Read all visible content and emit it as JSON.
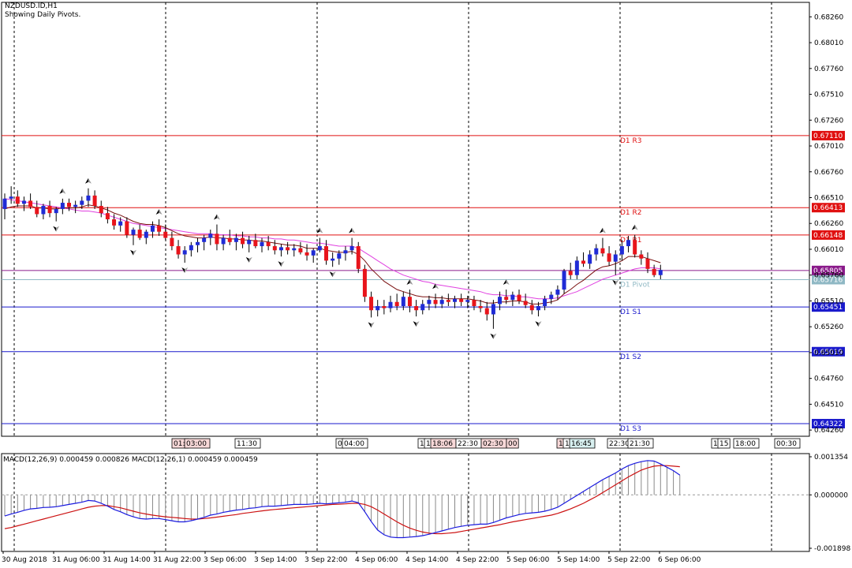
{
  "header": {
    "symbol_line": "NZDUSD.ID,H1",
    "pivots_line": "Showing Daily Pivots."
  },
  "colors": {
    "bull": "#1f2bd6",
    "bear": "#e8141b",
    "ma_fast": "#7a1010",
    "ma_slow": "#e040e0",
    "macd_line": "#1a1adf",
    "signal_line": "#cc1111",
    "resistance": "#e01010",
    "support": "#1a1acc",
    "pivot": "#8fb8c4",
    "current": "#8a1a8a"
  },
  "price_axis": {
    "ticks": [
      "0.68260",
      "0.68010",
      "0.67760",
      "0.67510",
      "0.67260",
      "0.67010",
      "0.66760",
      "0.66510",
      "0.66260",
      "0.66010",
      "0.65760",
      "0.65510",
      "0.65260",
      "0.65010",
      "0.64760",
      "0.64510",
      "0.64260"
    ],
    "min": 0.642,
    "max": 0.684
  },
  "pivot_levels": [
    {
      "name": "D1 R3",
      "label": "D1 R3",
      "value": 0.6711,
      "tag": "0.67110",
      "kind": "resistance"
    },
    {
      "name": "D1 R2",
      "label": "D1 R2",
      "value": 0.66413,
      "tag": "0.66413",
      "kind": "resistance"
    },
    {
      "name": "D1 R1",
      "label": "D1 R1",
      "value": 0.66148,
      "tag": "0.66148",
      "kind": "resistance"
    },
    {
      "name": "D1 Pivot",
      "label": "D1 Pivot",
      "value": 0.65716,
      "tag": "0.65716",
      "kind": "pivot"
    },
    {
      "name": "D1 S1",
      "label": "D1 S1",
      "value": 0.65451,
      "tag": "0.65451",
      "kind": "support"
    },
    {
      "name": "D1 S2",
      "label": "D1 S2",
      "value": 0.65019,
      "tag": "0.65019",
      "kind": "support"
    },
    {
      "name": "D1 S3",
      "label": "D1 S3",
      "value": 0.64322,
      "tag": "0.64322",
      "kind": "support"
    }
  ],
  "current_price": {
    "value": 0.65805,
    "tag": "0.65805"
  },
  "time_axis": {
    "labels": [
      "30 Aug 2018",
      "31 Aug 06:00",
      "31 Aug 14:00",
      "31 Aug 22:00",
      "3 Sep 06:00",
      "3 Sep 14:00",
      "3 Sep 22:00",
      "4 Sep 06:00",
      "4 Sep 14:00",
      "4 Sep 22:00",
      "5 Sep 06:00",
      "5 Sep 14:00",
      "5 Sep 22:00",
      "6 Sep 06:00"
    ]
  },
  "session_tags": [
    "01:",
    "03:00",
    "11:30",
    "0",
    "04:00",
    "1",
    "1",
    "18:06",
    "22:30",
    "02:30",
    "00",
    "1",
    "1",
    "16:45",
    "22:30",
    "21:30",
    "1",
    "15",
    "18:00",
    "00:30"
  ],
  "macd_panel": {
    "title": "MACD(12,26,9) 0.000459 0.000826 MACD(12,26,1) 0.000459 0.000459",
    "ticks": [
      "0.001354",
      "0.000000",
      "-0.001898"
    ],
    "min": -0.001898,
    "max": 0.001354
  },
  "chart_data": {
    "type": "candlestick",
    "symbol": "NZDUSD.ID",
    "timeframe": "H1",
    "candles": [
      {
        "o": 0.664,
        "h": 0.6655,
        "l": 0.663,
        "c": 0.665
      },
      {
        "o": 0.665,
        "h": 0.6662,
        "l": 0.6645,
        "c": 0.6652
      },
      {
        "o": 0.6652,
        "h": 0.6658,
        "l": 0.6642,
        "c": 0.6645
      },
      {
        "o": 0.6645,
        "h": 0.6652,
        "l": 0.6638,
        "c": 0.6648
      },
      {
        "o": 0.6648,
        "h": 0.6655,
        "l": 0.664,
        "c": 0.6642
      },
      {
        "o": 0.6642,
        "h": 0.6648,
        "l": 0.6632,
        "c": 0.6635
      },
      {
        "o": 0.6635,
        "h": 0.6645,
        "l": 0.663,
        "c": 0.6643
      },
      {
        "o": 0.6643,
        "h": 0.6648,
        "l": 0.6632,
        "c": 0.6636
      },
      {
        "o": 0.6636,
        "h": 0.6642,
        "l": 0.6628,
        "c": 0.664
      },
      {
        "o": 0.664,
        "h": 0.665,
        "l": 0.6635,
        "c": 0.6646
      },
      {
        "o": 0.6646,
        "h": 0.665,
        "l": 0.6638,
        "c": 0.6642
      },
      {
        "o": 0.6642,
        "h": 0.6648,
        "l": 0.6636,
        "c": 0.6644
      },
      {
        "o": 0.6644,
        "h": 0.6652,
        "l": 0.664,
        "c": 0.6648
      },
      {
        "o": 0.6648,
        "h": 0.666,
        "l": 0.6642,
        "c": 0.6653
      },
      {
        "o": 0.6653,
        "h": 0.6658,
        "l": 0.664,
        "c": 0.6643
      },
      {
        "o": 0.6643,
        "h": 0.6648,
        "l": 0.6632,
        "c": 0.6636
      },
      {
        "o": 0.6636,
        "h": 0.6642,
        "l": 0.6626,
        "c": 0.663
      },
      {
        "o": 0.663,
        "h": 0.6635,
        "l": 0.662,
        "c": 0.6624
      },
      {
        "o": 0.6624,
        "h": 0.6632,
        "l": 0.6618,
        "c": 0.6628
      },
      {
        "o": 0.6628,
        "h": 0.6632,
        "l": 0.6612,
        "c": 0.6615
      },
      {
        "o": 0.6615,
        "h": 0.6622,
        "l": 0.6605,
        "c": 0.662
      },
      {
        "o": 0.662,
        "h": 0.6625,
        "l": 0.661,
        "c": 0.6612
      },
      {
        "o": 0.6612,
        "h": 0.662,
        "l": 0.6606,
        "c": 0.6618
      },
      {
        "o": 0.6618,
        "h": 0.6628,
        "l": 0.6612,
        "c": 0.6624
      },
      {
        "o": 0.6624,
        "h": 0.663,
        "l": 0.6614,
        "c": 0.6618
      },
      {
        "o": 0.6618,
        "h": 0.6625,
        "l": 0.661,
        "c": 0.6612
      },
      {
        "o": 0.6612,
        "h": 0.6618,
        "l": 0.66,
        "c": 0.6604
      },
      {
        "o": 0.6604,
        "h": 0.661,
        "l": 0.6592,
        "c": 0.6596
      },
      {
        "o": 0.6596,
        "h": 0.6604,
        "l": 0.6588,
        "c": 0.66
      },
      {
        "o": 0.66,
        "h": 0.6608,
        "l": 0.6594,
        "c": 0.6605
      },
      {
        "o": 0.6605,
        "h": 0.6612,
        "l": 0.6598,
        "c": 0.6608
      },
      {
        "o": 0.6608,
        "h": 0.6615,
        "l": 0.66,
        "c": 0.6612
      },
      {
        "o": 0.6612,
        "h": 0.662,
        "l": 0.6605,
        "c": 0.6616
      },
      {
        "o": 0.6616,
        "h": 0.6625,
        "l": 0.66,
        "c": 0.6606
      },
      {
        "o": 0.6606,
        "h": 0.6615,
        "l": 0.66,
        "c": 0.6612
      },
      {
        "o": 0.6612,
        "h": 0.662,
        "l": 0.6605,
        "c": 0.6608
      },
      {
        "o": 0.6608,
        "h": 0.6616,
        "l": 0.66,
        "c": 0.6612
      },
      {
        "o": 0.6612,
        "h": 0.6618,
        "l": 0.6602,
        "c": 0.6606
      },
      {
        "o": 0.6606,
        "h": 0.6614,
        "l": 0.6598,
        "c": 0.661
      },
      {
        "o": 0.661,
        "h": 0.6616,
        "l": 0.6602,
        "c": 0.6604
      },
      {
        "o": 0.6604,
        "h": 0.6612,
        "l": 0.6598,
        "c": 0.6608
      },
      {
        "o": 0.6608,
        "h": 0.6614,
        "l": 0.66,
        "c": 0.6604
      },
      {
        "o": 0.6604,
        "h": 0.661,
        "l": 0.6596,
        "c": 0.66
      },
      {
        "o": 0.66,
        "h": 0.6606,
        "l": 0.6594,
        "c": 0.6603
      },
      {
        "o": 0.6603,
        "h": 0.6608,
        "l": 0.6596,
        "c": 0.66
      },
      {
        "o": 0.66,
        "h": 0.6606,
        "l": 0.6594,
        "c": 0.6602
      },
      {
        "o": 0.6602,
        "h": 0.6608,
        "l": 0.6596,
        "c": 0.6598
      },
      {
        "o": 0.6598,
        "h": 0.6606,
        "l": 0.659,
        "c": 0.6595
      },
      {
        "o": 0.6595,
        "h": 0.6602,
        "l": 0.6588,
        "c": 0.66
      },
      {
        "o": 0.66,
        "h": 0.6612,
        "l": 0.6598,
        "c": 0.6604
      },
      {
        "o": 0.6604,
        "h": 0.661,
        "l": 0.6586,
        "c": 0.659
      },
      {
        "o": 0.659,
        "h": 0.6598,
        "l": 0.6584,
        "c": 0.6592
      },
      {
        "o": 0.6592,
        "h": 0.66,
        "l": 0.6586,
        "c": 0.6597
      },
      {
        "o": 0.6597,
        "h": 0.6604,
        "l": 0.659,
        "c": 0.66
      },
      {
        "o": 0.66,
        "h": 0.6612,
        "l": 0.6596,
        "c": 0.6604
      },
      {
        "o": 0.6604,
        "h": 0.6608,
        "l": 0.6578,
        "c": 0.6582
      },
      {
        "o": 0.6582,
        "h": 0.6586,
        "l": 0.655,
        "c": 0.6555
      },
      {
        "o": 0.6555,
        "h": 0.656,
        "l": 0.6535,
        "c": 0.6542
      },
      {
        "o": 0.6542,
        "h": 0.6552,
        "l": 0.6536,
        "c": 0.6546
      },
      {
        "o": 0.6546,
        "h": 0.6552,
        "l": 0.6538,
        "c": 0.6544
      },
      {
        "o": 0.6544,
        "h": 0.6556,
        "l": 0.654,
        "c": 0.655
      },
      {
        "o": 0.655,
        "h": 0.6558,
        "l": 0.6542,
        "c": 0.6546
      },
      {
        "o": 0.6546,
        "h": 0.656,
        "l": 0.6542,
        "c": 0.6555
      },
      {
        "o": 0.6555,
        "h": 0.6562,
        "l": 0.654,
        "c": 0.6546
      },
      {
        "o": 0.6546,
        "h": 0.6552,
        "l": 0.6536,
        "c": 0.6542
      },
      {
        "o": 0.6542,
        "h": 0.6552,
        "l": 0.6538,
        "c": 0.6548
      },
      {
        "o": 0.6548,
        "h": 0.6556,
        "l": 0.6542,
        "c": 0.6552
      },
      {
        "o": 0.6552,
        "h": 0.6558,
        "l": 0.6544,
        "c": 0.6548
      },
      {
        "o": 0.6548,
        "h": 0.6556,
        "l": 0.6544,
        "c": 0.6552
      },
      {
        "o": 0.6552,
        "h": 0.6558,
        "l": 0.6546,
        "c": 0.655
      },
      {
        "o": 0.655,
        "h": 0.6556,
        "l": 0.6544,
        "c": 0.6553
      },
      {
        "o": 0.6553,
        "h": 0.6558,
        "l": 0.6546,
        "c": 0.655
      },
      {
        "o": 0.655,
        "h": 0.6556,
        "l": 0.6544,
        "c": 0.6552
      },
      {
        "o": 0.6552,
        "h": 0.6556,
        "l": 0.6542,
        "c": 0.6546
      },
      {
        "o": 0.6546,
        "h": 0.6552,
        "l": 0.654,
        "c": 0.6544
      },
      {
        "o": 0.6544,
        "h": 0.655,
        "l": 0.6532,
        "c": 0.6538
      },
      {
        "o": 0.6538,
        "h": 0.6552,
        "l": 0.6524,
        "c": 0.6548
      },
      {
        "o": 0.6548,
        "h": 0.656,
        "l": 0.6542,
        "c": 0.6555
      },
      {
        "o": 0.6555,
        "h": 0.6562,
        "l": 0.6548,
        "c": 0.6552
      },
      {
        "o": 0.6552,
        "h": 0.656,
        "l": 0.6546,
        "c": 0.6557
      },
      {
        "o": 0.6557,
        "h": 0.6562,
        "l": 0.6548,
        "c": 0.6551
      },
      {
        "o": 0.6551,
        "h": 0.6558,
        "l": 0.6544,
        "c": 0.6547
      },
      {
        "o": 0.6547,
        "h": 0.6552,
        "l": 0.6538,
        "c": 0.6542
      },
      {
        "o": 0.6542,
        "h": 0.655,
        "l": 0.6536,
        "c": 0.6546
      },
      {
        "o": 0.6546,
        "h": 0.6556,
        "l": 0.6542,
        "c": 0.6553
      },
      {
        "o": 0.6553,
        "h": 0.656,
        "l": 0.6548,
        "c": 0.6557
      },
      {
        "o": 0.6557,
        "h": 0.6566,
        "l": 0.6552,
        "c": 0.6562
      },
      {
        "o": 0.6562,
        "h": 0.6582,
        "l": 0.6558,
        "c": 0.658
      },
      {
        "o": 0.658,
        "h": 0.6588,
        "l": 0.6572,
        "c": 0.6576
      },
      {
        "o": 0.6576,
        "h": 0.6594,
        "l": 0.6572,
        "c": 0.659
      },
      {
        "o": 0.659,
        "h": 0.6598,
        "l": 0.6584,
        "c": 0.6587
      },
      {
        "o": 0.6587,
        "h": 0.66,
        "l": 0.6582,
        "c": 0.6596
      },
      {
        "o": 0.6596,
        "h": 0.6606,
        "l": 0.659,
        "c": 0.6602
      },
      {
        "o": 0.6602,
        "h": 0.6612,
        "l": 0.6594,
        "c": 0.6597
      },
      {
        "o": 0.6597,
        "h": 0.6604,
        "l": 0.6585,
        "c": 0.6589
      },
      {
        "o": 0.6589,
        "h": 0.66,
        "l": 0.6576,
        "c": 0.6596
      },
      {
        "o": 0.6596,
        "h": 0.661,
        "l": 0.659,
        "c": 0.6604
      },
      {
        "o": 0.6604,
        "h": 0.6614,
        "l": 0.6598,
        "c": 0.661
      },
      {
        "o": 0.661,
        "h": 0.6615,
        "l": 0.6593,
        "c": 0.6596
      },
      {
        "o": 0.6596,
        "h": 0.66,
        "l": 0.6586,
        "c": 0.6592
      },
      {
        "o": 0.6592,
        "h": 0.6598,
        "l": 0.6578,
        "c": 0.6582
      },
      {
        "o": 0.6582,
        "h": 0.6586,
        "l": 0.6574,
        "c": 0.6576
      },
      {
        "o": 0.6576,
        "h": 0.6586,
        "l": 0.6572,
        "c": 0.6581
      }
    ],
    "ma_fast": [
      0.664,
      0.6642,
      0.6643,
      0.6643,
      0.6643,
      0.6641,
      0.6641,
      0.664,
      0.664,
      0.6641,
      0.6641,
      0.6641,
      0.6642,
      0.6644,
      0.6643,
      0.6641,
      0.6639,
      0.6636,
      0.6634,
      0.6631,
      0.6628,
      0.6626,
      0.6625,
      0.6625,
      0.6624,
      0.6622,
      0.6619,
      0.6616,
      0.6614,
      0.6613,
      0.6612,
      0.6612,
      0.6613,
      0.6612,
      0.6612,
      0.6611,
      0.6611,
      0.661,
      0.661,
      0.6609,
      0.6609,
      0.6608,
      0.6607,
      0.6606,
      0.6605,
      0.6605,
      0.6604,
      0.6602,
      0.6602,
      0.6602,
      0.66,
      0.6599,
      0.6598,
      0.6598,
      0.6599,
      0.6596,
      0.659,
      0.6582,
      0.6576,
      0.657,
      0.6566,
      0.6562,
      0.656,
      0.6558,
      0.6556,
      0.6555,
      0.6555,
      0.6554,
      0.6554,
      0.6553,
      0.6553,
      0.6553,
      0.6553,
      0.6552,
      0.6551,
      0.6549,
      0.6549,
      0.655,
      0.655,
      0.6551,
      0.6551,
      0.655,
      0.6548,
      0.6548,
      0.6549,
      0.655,
      0.6552,
      0.6558,
      0.6562,
      0.6567,
      0.6571,
      0.6576,
      0.6581,
      0.6584,
      0.6585,
      0.6587,
      0.659,
      0.6594,
      0.6594,
      0.6594,
      0.6592,
      0.659,
      0.6588
    ],
    "ma_slow": [
      0.665,
      0.6649,
      0.6648,
      0.6647,
      0.6646,
      0.6645,
      0.6644,
      0.6643,
      0.6642,
      0.6641,
      0.664,
      0.6639,
      0.6638,
      0.6638,
      0.6637,
      0.6636,
      0.6634,
      0.6632,
      0.663,
      0.6628,
      0.6626,
      0.6625,
      0.6624,
      0.6623,
      0.6622,
      0.6621,
      0.662,
      0.6619,
      0.6618,
      0.6617,
      0.6616,
      0.6616,
      0.6616,
      0.6615,
      0.6615,
      0.6615,
      0.6614,
      0.6614,
      0.6613,
      0.6613,
      0.6612,
      0.6612,
      0.6611,
      0.6611,
      0.661,
      0.661,
      0.6609,
      0.6608,
      0.6607,
      0.6607,
      0.6606,
      0.6605,
      0.6604,
      0.6604,
      0.6604,
      0.6602,
      0.6598,
      0.6594,
      0.659,
      0.6586,
      0.6582,
      0.6579,
      0.6576,
      0.6574,
      0.6572,
      0.657,
      0.6569,
      0.6567,
      0.6566,
      0.6565,
      0.6564,
      0.6563,
      0.6562,
      0.6561,
      0.656,
      0.6558,
      0.6557,
      0.6557,
      0.6556,
      0.6556,
      0.6555,
      0.6555,
      0.6554,
      0.6553,
      0.6553,
      0.6553,
      0.6554,
      0.6556,
      0.6558,
      0.656,
      0.6563,
      0.6566,
      0.6569,
      0.6572,
      0.6574,
      0.6576,
      0.6578,
      0.658,
      0.6582,
      0.6583,
      0.6583,
      0.6583,
      0.6582
    ],
    "macd": [
      -0.00075,
      -0.00068,
      -0.00062,
      -0.00055,
      -0.0005,
      -0.00048,
      -0.00045,
      -0.00044,
      -0.00042,
      -0.00038,
      -0.00034,
      -0.0003,
      -0.00026,
      -0.0002,
      -0.00022,
      -0.0003,
      -0.0004,
      -0.00052,
      -0.0006,
      -0.0007,
      -0.00078,
      -0.00084,
      -0.00086,
      -0.00084,
      -0.00084,
      -0.00088,
      -0.00092,
      -0.00096,
      -0.00096,
      -0.00092,
      -0.00086,
      -0.0008,
      -0.00072,
      -0.00068,
      -0.00062,
      -0.00058,
      -0.00054,
      -0.00052,
      -0.00048,
      -0.00046,
      -0.00042,
      -0.0004,
      -0.0004,
      -0.00038,
      -0.00036,
      -0.00034,
      -0.00034,
      -0.00034,
      -0.00032,
      -0.0003,
      -0.00032,
      -0.0003,
      -0.00028,
      -0.00026,
      -0.00022,
      -0.00028,
      -0.0006,
      -0.00095,
      -0.00125,
      -0.00142,
      -0.0015,
      -0.00152,
      -0.00152,
      -0.0015,
      -0.00148,
      -0.00145,
      -0.0014,
      -0.00134,
      -0.00128,
      -0.00122,
      -0.00116,
      -0.00112,
      -0.00108,
      -0.00106,
      -0.00104,
      -0.00104,
      -0.00098,
      -0.0009,
      -0.00082,
      -0.00076,
      -0.0007,
      -0.00066,
      -0.00064,
      -0.00062,
      -0.00058,
      -0.00052,
      -0.00044,
      -0.0003,
      -0.00016,
      -2e-05,
      0.00012,
      0.00026,
      0.0004,
      0.00054,
      0.00066,
      0.00078,
      0.00092,
      0.00104,
      0.00112,
      0.00118,
      0.00122,
      0.0012,
      0.0011,
      0.00098,
      0.00086,
      0.0007
    ],
    "signal": [
      -0.0012,
      -0.00116,
      -0.0011,
      -0.00104,
      -0.00098,
      -0.00092,
      -0.00086,
      -0.0008,
      -0.00074,
      -0.00068,
      -0.00062,
      -0.00056,
      -0.0005,
      -0.00044,
      -0.0004,
      -0.00038,
      -0.00038,
      -0.00042,
      -0.00046,
      -0.00052,
      -0.00058,
      -0.00064,
      -0.00068,
      -0.00072,
      -0.00075,
      -0.00078,
      -0.0008,
      -0.00082,
      -0.00084,
      -0.00086,
      -0.00086,
      -0.00084,
      -0.00082,
      -0.00079,
      -0.00076,
      -0.00073,
      -0.0007,
      -0.00066,
      -0.00063,
      -0.0006,
      -0.00057,
      -0.00054,
      -0.00052,
      -0.0005,
      -0.00048,
      -0.00046,
      -0.00044,
      -0.00042,
      -0.0004,
      -0.00038,
      -0.00036,
      -0.00034,
      -0.00033,
      -0.00032,
      -0.0003,
      -0.0003,
      -0.00034,
      -0.00042,
      -0.00054,
      -0.00068,
      -0.00082,
      -0.00096,
      -0.00108,
      -0.00118,
      -0.00126,
      -0.00132,
      -0.00136,
      -0.00138,
      -0.00138,
      -0.00136,
      -0.00134,
      -0.0013,
      -0.00126,
      -0.00122,
      -0.00118,
      -0.00114,
      -0.0011,
      -0.00106,
      -0.00101,
      -0.00096,
      -0.00092,
      -0.00088,
      -0.00084,
      -0.0008,
      -0.00076,
      -0.00072,
      -0.00066,
      -0.00058,
      -0.0005,
      -0.0004,
      -0.0003,
      -0.00018,
      -6e-05,
      8e-05,
      0.00022,
      0.00036,
      0.0005,
      0.00064,
      0.00076,
      0.00088,
      0.00096,
      0.00102,
      0.00104,
      0.00104,
      0.00102,
      0.001
    ]
  }
}
